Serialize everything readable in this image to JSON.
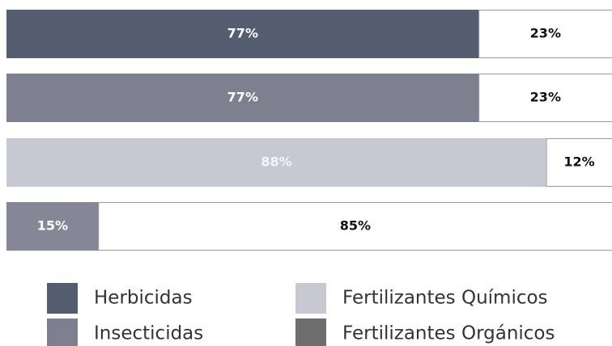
{
  "chart_data": {
    "type": "bar",
    "orientation": "horizontal",
    "stacked": true,
    "categories": [
      null,
      null,
      null,
      null
    ],
    "values": [
      77,
      77,
      88,
      15
    ],
    "value_labels": [
      "77%",
      "77%",
      "88%",
      "15%"
    ],
    "colors": [
      "#555d70",
      "#7e8090",
      "#c8c8d2",
      "#858796"
    ],
    "rest_values": [
      23,
      23,
      12,
      85
    ],
    "rest_value_labels": [
      "23%",
      "23%",
      "12%",
      "85%"
    ],
    "rest_color": "#ffffff",
    "xlim": [
      0,
      100
    ],
    "legend": [
      {
        "name": "Herbicidas",
        "color": "#555d70"
      },
      {
        "name": "Insecticidas",
        "color": "#7e8090"
      },
      {
        "name": "Fertilizantes Químicos",
        "color": "#c8c8d2"
      },
      {
        "name": "Fertilizantes Orgánicos",
        "color": "#6e6e6e"
      }
    ]
  }
}
